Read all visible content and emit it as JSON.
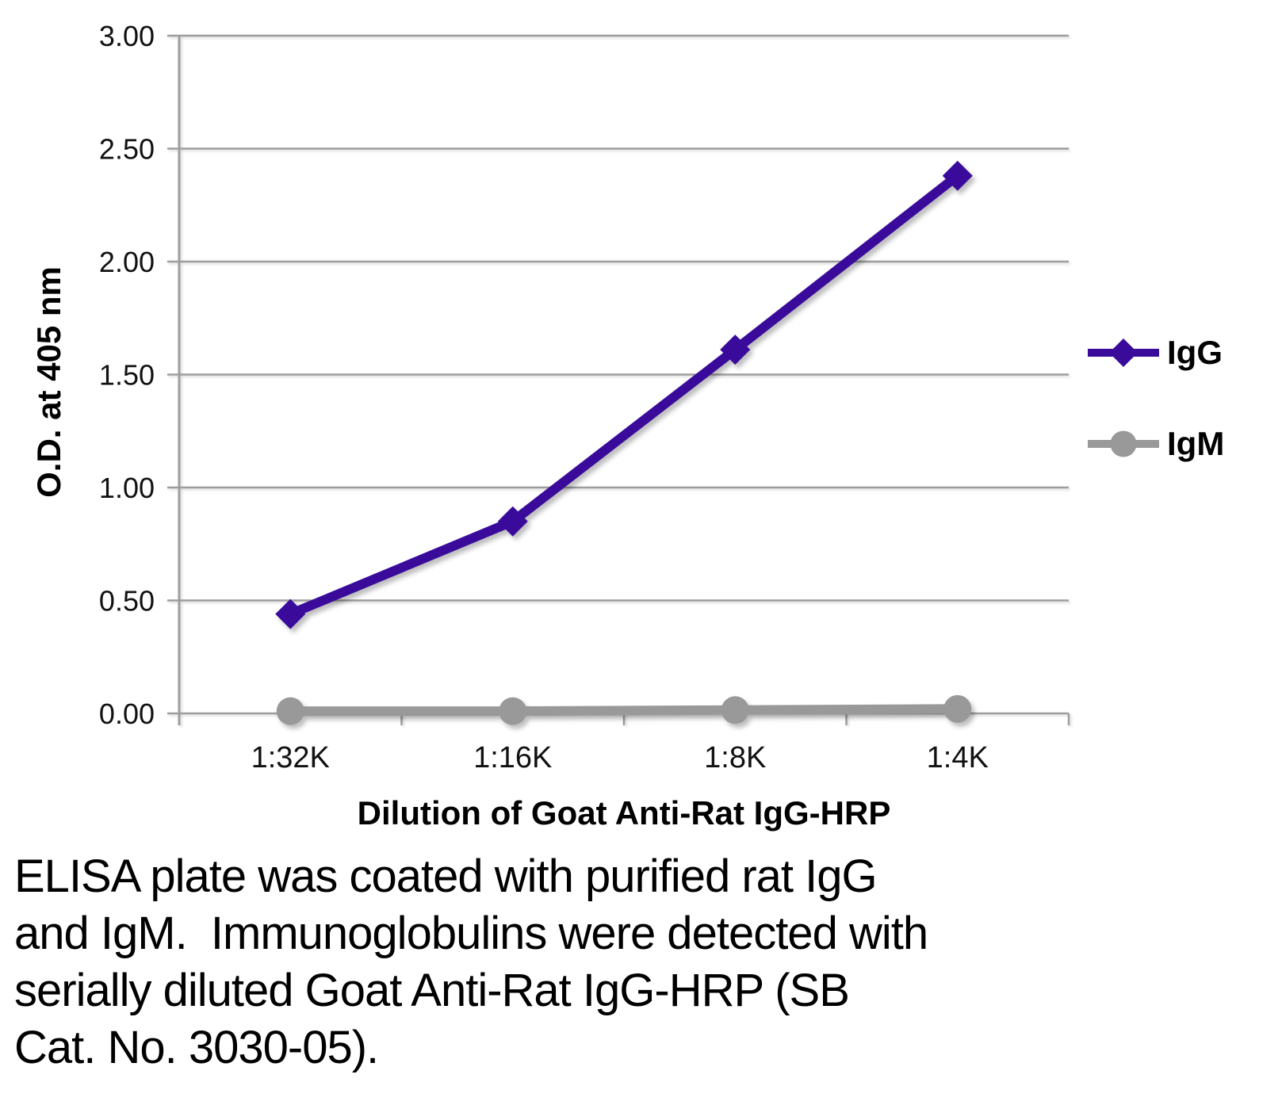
{
  "chart_data": {
    "type": "line",
    "categories": [
      "1:32K",
      "1:16K",
      "1:8K",
      "1:4K"
    ],
    "series": [
      {
        "name": "IgG",
        "values": [
          0.44,
          0.85,
          1.61,
          2.38
        ],
        "color": "#3A0B9B",
        "marker": "diamond"
      },
      {
        "name": "IgM",
        "values": [
          0.01,
          0.01,
          0.015,
          0.02
        ],
        "color": "#999999",
        "marker": "circle"
      }
    ],
    "title": "",
    "xlabel": "Dilution of Goat Anti-Rat IgG-HRP",
    "ylabel": "O.D. at 405 nm",
    "ylim": [
      0,
      3
    ],
    "ytick_step": 0.5,
    "ytick_labels": [
      "0.00",
      "0.50",
      "1.00",
      "1.50",
      "2.00",
      "2.50",
      "3.00"
    ],
    "grid": true,
    "legend_position": "right"
  },
  "colors": {
    "grid": "#9E9E9E",
    "axis": "#9E9E9E",
    "tick_text": "#111111"
  },
  "caption": {
    "lines": [
      "ELISA plate was coated with purified rat IgG",
      "and IgM.  Immunoglobulins were detected with",
      "serially diluted Goat Anti-Rat IgG-HRP (SB",
      "Cat. No. 3030-05)."
    ]
  }
}
